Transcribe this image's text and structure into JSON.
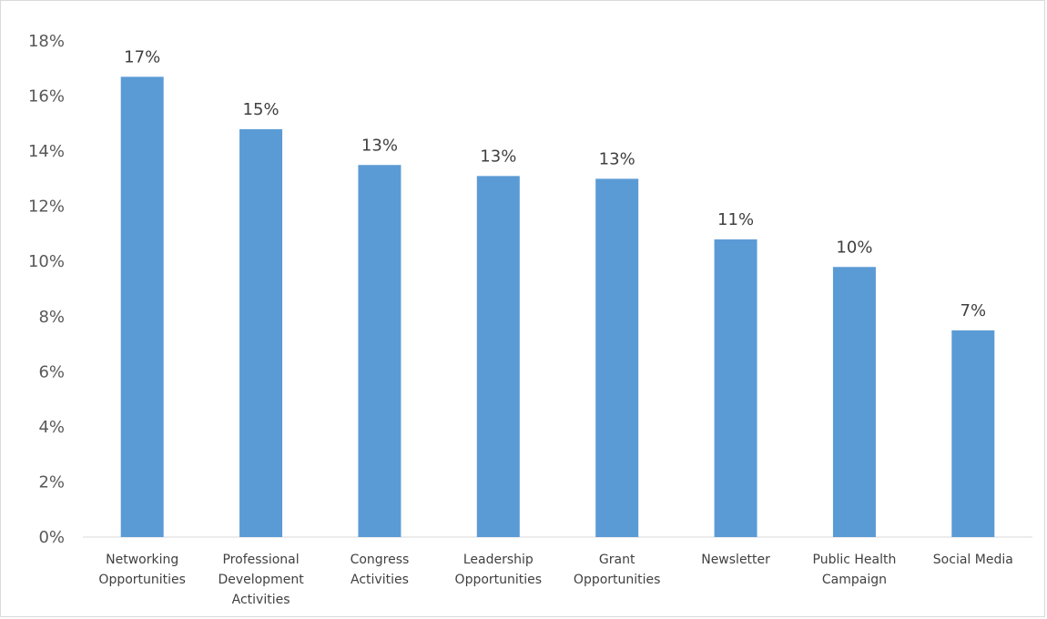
{
  "chart_data": {
    "type": "bar",
    "categories": [
      "Networking Opportunities",
      "Professional Development Activities",
      "Congress Activities",
      "Leadership Opportunities",
      "Grant Opportunities",
      "Newsletter",
      "Public Health Campaign",
      "Social Media"
    ],
    "category_label_lines": [
      [
        "Networking",
        "Opportunities"
      ],
      [
        "Professional",
        "Development",
        "Activities"
      ],
      [
        "Congress",
        "Activities"
      ],
      [
        "Leadership",
        "Opportunities"
      ],
      [
        "Grant",
        "Opportunities"
      ],
      [
        "Newsletter"
      ],
      [
        "Public Health",
        "Campaign"
      ],
      [
        "Social Media"
      ]
    ],
    "values": [
      16.7,
      14.8,
      13.5,
      13.1,
      13.0,
      10.8,
      9.8,
      7.5
    ],
    "data_labels": [
      "17%",
      "15%",
      "13%",
      "13%",
      "13%",
      "11%",
      "10%",
      "7%"
    ],
    "ylim": [
      0,
      18
    ],
    "yticks": [
      0,
      2,
      4,
      6,
      8,
      10,
      12,
      14,
      16,
      18
    ],
    "ytick_labels": [
      "0%",
      "2%",
      "4%",
      "6%",
      "8%",
      "10%",
      "12%",
      "14%",
      "16%",
      "18%"
    ],
    "bar_color": "#5B9BD5",
    "grid": false,
    "legend": "none"
  }
}
